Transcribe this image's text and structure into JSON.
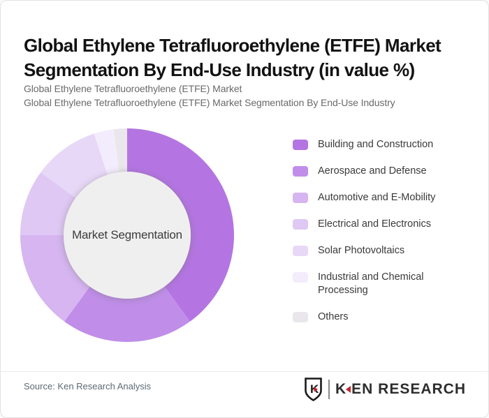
{
  "header": {
    "title": "Global Ethylene Tetrafluoroethylene (ETFE) Market Segmentation By End-Use Industry (in value %)",
    "subtitle_line1": "Global Ethylene Tetrafluoroethylene (ETFE) Market",
    "subtitle_line2": "Global Ethylene Tetrafluoroethylene (ETFE) Market Segmentation By End-Use Industry"
  },
  "chart_data": {
    "type": "pie",
    "variant": "donut",
    "title": "Global Ethylene Tetrafluoroethylene (ETFE) Market Segmentation By End-Use Industry (in value %)",
    "center_label": "Market Segmentation",
    "center_fill": "#f0eff0",
    "start_angle_deg": 0,
    "direction": "clockwise",
    "legend_position": "right",
    "categories": [
      "Building and Construction",
      "Aerospace and Defense",
      "Automotive and E-Mobility",
      "Electrical and Electronics",
      "Solar Photovoltaics",
      "Industrial and Chemical Processing",
      "Others"
    ],
    "values": [
      40,
      20,
      15,
      10,
      10,
      3,
      2
    ],
    "values_note": "percentages estimated from arc angles; slices are unlabeled in the image",
    "colors": [
      "#b475e2",
      "#c08ee9",
      "#d6b5f1",
      "#dfc8f4",
      "#e8d8f7",
      "#f3ecfc",
      "#e9e7eb"
    ]
  },
  "footer": {
    "source": "Source: Ken Research Analysis",
    "logo": {
      "shield_letter": "K",
      "brand_left": "K",
      "brand_right": "EN RESEARCH",
      "accent_color": "#c42127"
    }
  }
}
